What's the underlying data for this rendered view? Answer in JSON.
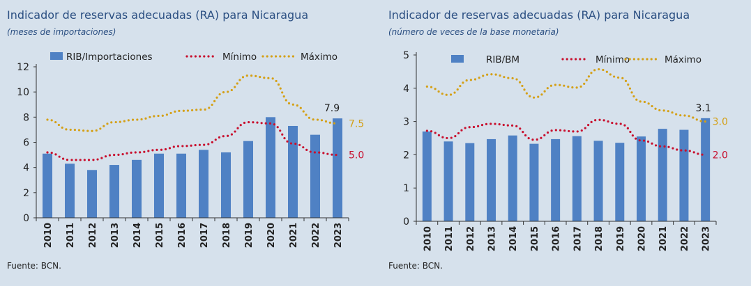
{
  "charts": [
    {
      "title": "Indicador de reservas adecuadas (RA) para Nicaragua",
      "subtitle": "(meses de importaciones)",
      "source": "Fuente: BCN."
    },
    {
      "title": "Indicador de reservas adecuadas (RA) para Nicaragua",
      "subtitle": "(número de veces de la base monetaria)",
      "source": "Fuente: BCN."
    }
  ],
  "colors": {
    "bar": "#4f81c4",
    "min": "#c8102e",
    "max": "#d4a017",
    "axis": "#333333",
    "text": "#222222"
  },
  "chart_data": [
    {
      "type": "bar",
      "title": "Indicador de reservas adecuadas (RA) para Nicaragua",
      "subtitle": "(meses de importaciones)",
      "categories": [
        "2010",
        "2011",
        "2012",
        "2013",
        "2014",
        "2015",
        "2016",
        "2017",
        "2018",
        "2019",
        "2020",
        "2021",
        "2022",
        "2023"
      ],
      "ylim": [
        0,
        12
      ],
      "yticks": [
        0,
        2,
        4,
        6,
        8,
        10,
        12
      ],
      "grid": false,
      "legend_position": "top",
      "series": [
        {
          "name": "RIB/Importaciones",
          "kind": "bar",
          "values": [
            5.1,
            4.3,
            3.8,
            4.2,
            4.6,
            5.1,
            5.1,
            5.4,
            5.2,
            6.1,
            8.0,
            7.3,
            6.6,
            7.9
          ],
          "end_label": "7.9"
        },
        {
          "name": "Mínimo",
          "kind": "dotted-line",
          "values": [
            5.2,
            4.6,
            4.6,
            5.0,
            5.2,
            5.4,
            5.7,
            5.8,
            6.5,
            7.6,
            7.5,
            5.9,
            5.2,
            5.0
          ],
          "end_label": "5.0"
        },
        {
          "name": "Máximo",
          "kind": "dotted-line",
          "values": [
            7.8,
            7.0,
            6.9,
            7.6,
            7.8,
            8.1,
            8.5,
            8.6,
            10.0,
            11.3,
            11.1,
            9.0,
            7.8,
            7.5
          ],
          "end_label": "7.5"
        }
      ]
    },
    {
      "type": "bar",
      "title": "Indicador de reservas adecuadas (RA) para Nicaragua",
      "subtitle": "(número de veces de la base monetaria)",
      "categories": [
        "2010",
        "2011",
        "2012",
        "2013",
        "2014",
        "2015",
        "2016",
        "2017",
        "2018",
        "2019",
        "2020",
        "2021",
        "2022",
        "2023"
      ],
      "ylim": [
        0,
        5
      ],
      "yticks": [
        0,
        1,
        2,
        3,
        4,
        5
      ],
      "grid": false,
      "legend_position": "top",
      "series": [
        {
          "name": "RIB/BM",
          "kind": "bar",
          "values": [
            2.7,
            2.4,
            2.35,
            2.47,
            2.58,
            2.33,
            2.47,
            2.56,
            2.42,
            2.36,
            2.55,
            2.78,
            2.75,
            3.1
          ],
          "end_label": "3.1"
        },
        {
          "name": "Mínimo",
          "kind": "dotted-line",
          "values": [
            2.72,
            2.5,
            2.83,
            2.93,
            2.88,
            2.45,
            2.74,
            2.7,
            3.05,
            2.93,
            2.43,
            2.25,
            2.13,
            2.0
          ],
          "end_label": "2.0"
        },
        {
          "name": "Máximo",
          "kind": "dotted-line",
          "values": [
            4.05,
            3.8,
            4.25,
            4.42,
            4.3,
            3.72,
            4.1,
            4.02,
            4.57,
            4.32,
            3.6,
            3.33,
            3.18,
            3.0
          ],
          "end_label": "3.0"
        }
      ]
    }
  ]
}
